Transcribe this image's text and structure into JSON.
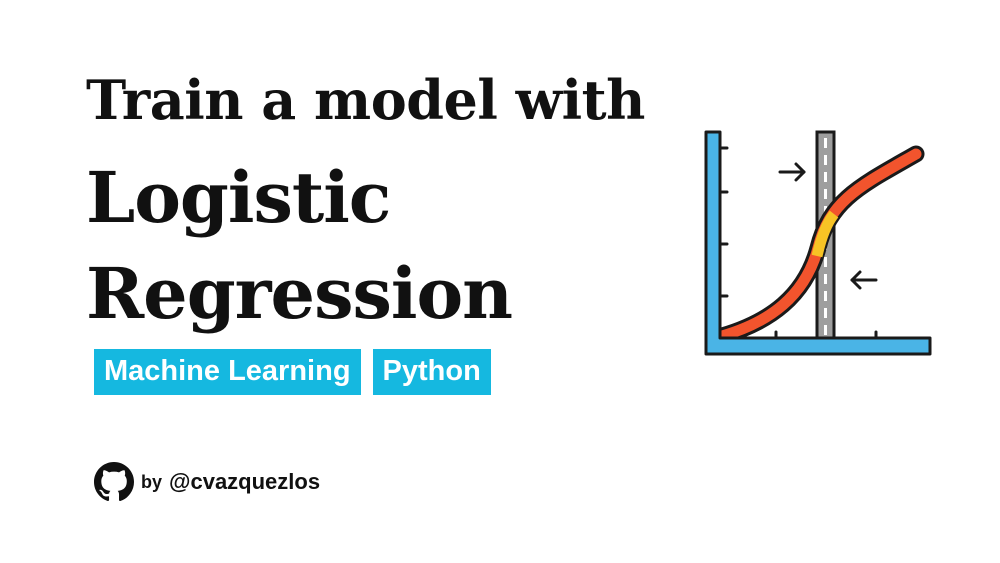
{
  "title": {
    "line1": "Train a model with",
    "line2": "Logistic",
    "line3": "Regression"
  },
  "tags": [
    "Machine Learning",
    "Python"
  ],
  "author": {
    "by": "by",
    "handle": "@cvazquezlos"
  },
  "icons": {
    "author_icon": "github-icon",
    "illustration": "logistic-regression-curve-icon"
  },
  "colors": {
    "tag_background": "#15b8e0",
    "tag_text": "#ffffff",
    "title_text": "#111111",
    "axis_blue": "#4ab4e6",
    "curve_red": "#f2542d",
    "curve_yellow": "#f7c325",
    "threshold_gray": "#9e9e9e"
  }
}
